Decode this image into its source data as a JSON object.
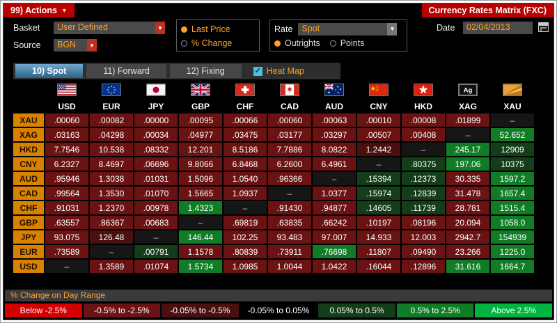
{
  "titlebar": {
    "actions_label": "99) Actions",
    "title": "Currency Rates Matrix (FXC)"
  },
  "controls": {
    "basket": {
      "label": "Basket",
      "value": "User Defined"
    },
    "source": {
      "label": "Source",
      "value": "BGN"
    },
    "price_mode": {
      "options": [
        {
          "label": "Last Price",
          "selected": true
        },
        {
          "label": "% Change",
          "selected": false
        }
      ]
    },
    "rate": {
      "label": "Rate",
      "value": "Spot",
      "options": [
        {
          "label": "Outrights",
          "selected": true
        },
        {
          "label": "Points",
          "selected": false
        }
      ]
    },
    "date": {
      "label": "Date",
      "value": "02/04/2013"
    }
  },
  "tabs": [
    {
      "label": "10) Spot",
      "active": true
    },
    {
      "label": "11) Forward",
      "active": false
    },
    {
      "label": "12) Fixing",
      "active": false
    }
  ],
  "heatmap_toggle": {
    "label": "Heat Map",
    "checked": true
  },
  "heat_colors": {
    "R": "#6b1313",
    "DR": "#4a0f0f",
    "K": "#161616",
    "DG": "#143d19",
    "G": "#107d26"
  },
  "matrix": {
    "columns": [
      {
        "code": "USD",
        "flag": "us-flag-icon"
      },
      {
        "code": "EUR",
        "flag": "eu-flag-icon"
      },
      {
        "code": "JPY",
        "flag": "japan-flag-icon"
      },
      {
        "code": "GBP",
        "flag": "uk-flag-icon"
      },
      {
        "code": "CHF",
        "flag": "switzerland-flag-icon"
      },
      {
        "code": "CAD",
        "flag": "canada-flag-icon"
      },
      {
        "code": "AUD",
        "flag": "australia-flag-icon"
      },
      {
        "code": "CNY",
        "flag": "china-flag-icon"
      },
      {
        "code": "HKD",
        "flag": "hong-kong-flag-icon"
      },
      {
        "code": "XAG",
        "flag": "silver-icon"
      },
      {
        "code": "XAU",
        "flag": "gold-icon"
      }
    ],
    "rows": [
      {
        "label": "XAU",
        "values": [
          ".00060",
          ".00082",
          ".00000",
          ".00095",
          ".00066",
          ".00060",
          ".00063",
          ".00010",
          ".00008",
          ".01899",
          "–"
        ],
        "colors": [
          "R",
          "R",
          "R",
          "R",
          "R",
          "R",
          "R",
          "R",
          "R",
          "R",
          "K"
        ]
      },
      {
        "label": "XAG",
        "values": [
          ".03163",
          ".04298",
          ".00034",
          ".04977",
          ".03475",
          ".03177",
          ".03297",
          ".00507",
          ".00408",
          "–",
          "52.652"
        ],
        "colors": [
          "R",
          "R",
          "R",
          "R",
          "R",
          "R",
          "R",
          "R",
          "R",
          "K",
          "G"
        ]
      },
      {
        "label": "HKD",
        "values": [
          "7.7546",
          "10.538",
          ".08332",
          "12.201",
          "8.5186",
          "7.7886",
          "8.0822",
          "1.2442",
          "–",
          "245.17",
          "12909"
        ],
        "colors": [
          "R",
          "R",
          "R",
          "R",
          "R",
          "R",
          "R",
          "DR",
          "K",
          "G",
          "DG"
        ]
      },
      {
        "label": "CNY",
        "values": [
          "6.2327",
          "8.4697",
          ".06696",
          "9.8066",
          "6.8468",
          "6.2600",
          "6.4961",
          "–",
          ".80375",
          "197.06",
          "10375"
        ],
        "colors": [
          "R",
          "R",
          "R",
          "R",
          "R",
          "R",
          "R",
          "K",
          "DG",
          "G",
          "DG"
        ]
      },
      {
        "label": "AUD",
        "values": [
          ".95946",
          "1.3038",
          ".01031",
          "1.5096",
          "1.0540",
          ".96366",
          "–",
          ".15394",
          ".12373",
          "30.335",
          "1597.2"
        ],
        "colors": [
          "R",
          "R",
          "R",
          "R",
          "R",
          "R",
          "K",
          "DG",
          "DG",
          "R",
          "G"
        ]
      },
      {
        "label": "CAD",
        "values": [
          ".99564",
          "1.3530",
          ".01070",
          "1.5665",
          "1.0937",
          "–",
          "1.0377",
          ".15974",
          ".12839",
          "31.478",
          "1657.4"
        ],
        "colors": [
          "R",
          "R",
          "R",
          "R",
          "R",
          "K",
          "R",
          "DG",
          "DG",
          "R",
          "G"
        ]
      },
      {
        "label": "CHF",
        "values": [
          ".91031",
          "1.2370",
          ".00978",
          "1.4323",
          "–",
          ".91430",
          ".94877",
          ".14605",
          ".11739",
          "28.781",
          "1515.4"
        ],
        "colors": [
          "R",
          "R",
          "R",
          "G",
          "K",
          "R",
          "R",
          "DG",
          "DG",
          "R",
          "G"
        ]
      },
      {
        "label": "GBP",
        "values": [
          ".63557",
          ".86367",
          ".00683",
          "–",
          ".69819",
          ".63835",
          ".66242",
          ".10197",
          ".08196",
          "20.094",
          "1058.0"
        ],
        "colors": [
          "R",
          "R",
          "R",
          "K",
          "R",
          "R",
          "R",
          "R",
          "R",
          "R",
          "G"
        ]
      },
      {
        "label": "JPY",
        "values": [
          "93.075",
          "126.48",
          "–",
          "146.44",
          "102.25",
          "93.483",
          "97.007",
          "14.933",
          "12.003",
          "2942.7",
          "154939"
        ],
        "colors": [
          "R",
          "DR",
          "K",
          "G",
          "R",
          "R",
          "R",
          "R",
          "R",
          "R",
          "G"
        ]
      },
      {
        "label": "EUR",
        "values": [
          ".73589",
          "–",
          ".00791",
          "1.1578",
          ".80839",
          ".73911",
          ".76698",
          ".11807",
          ".09490",
          "23.266",
          "1225.0"
        ],
        "colors": [
          "R",
          "K",
          "DG",
          "R",
          "R",
          "R",
          "G",
          "R",
          "R",
          "R",
          "G"
        ]
      },
      {
        "label": "USD",
        "values": [
          "–",
          "1.3589",
          ".01074",
          "1.5734",
          "1.0985",
          "1.0044",
          "1.0422",
          ".16044",
          ".12896",
          "31.616",
          "1664.7"
        ],
        "colors": [
          "K",
          "R",
          "R",
          "G",
          "R",
          "R",
          "R",
          "R",
          "R",
          "G",
          "G"
        ]
      }
    ]
  },
  "legend": {
    "title": "% Change on Day Range",
    "bins": [
      {
        "label": "Below -2.5%",
        "color": "#d40000"
      },
      {
        "label": "-0.5% to -2.5%",
        "color": "#6b1313"
      },
      {
        "label": "-0.05% to -0.5%",
        "color": "#4a0f0f"
      },
      {
        "label": "-0.05% to 0.05%",
        "color": "#000000"
      },
      {
        "label": "0.05% to 0.5%",
        "color": "#143d19"
      },
      {
        "label": "0.5% to 2.5%",
        "color": "#107d26"
      },
      {
        "label": "Above 2.5%",
        "color": "#00b53f"
      }
    ]
  }
}
